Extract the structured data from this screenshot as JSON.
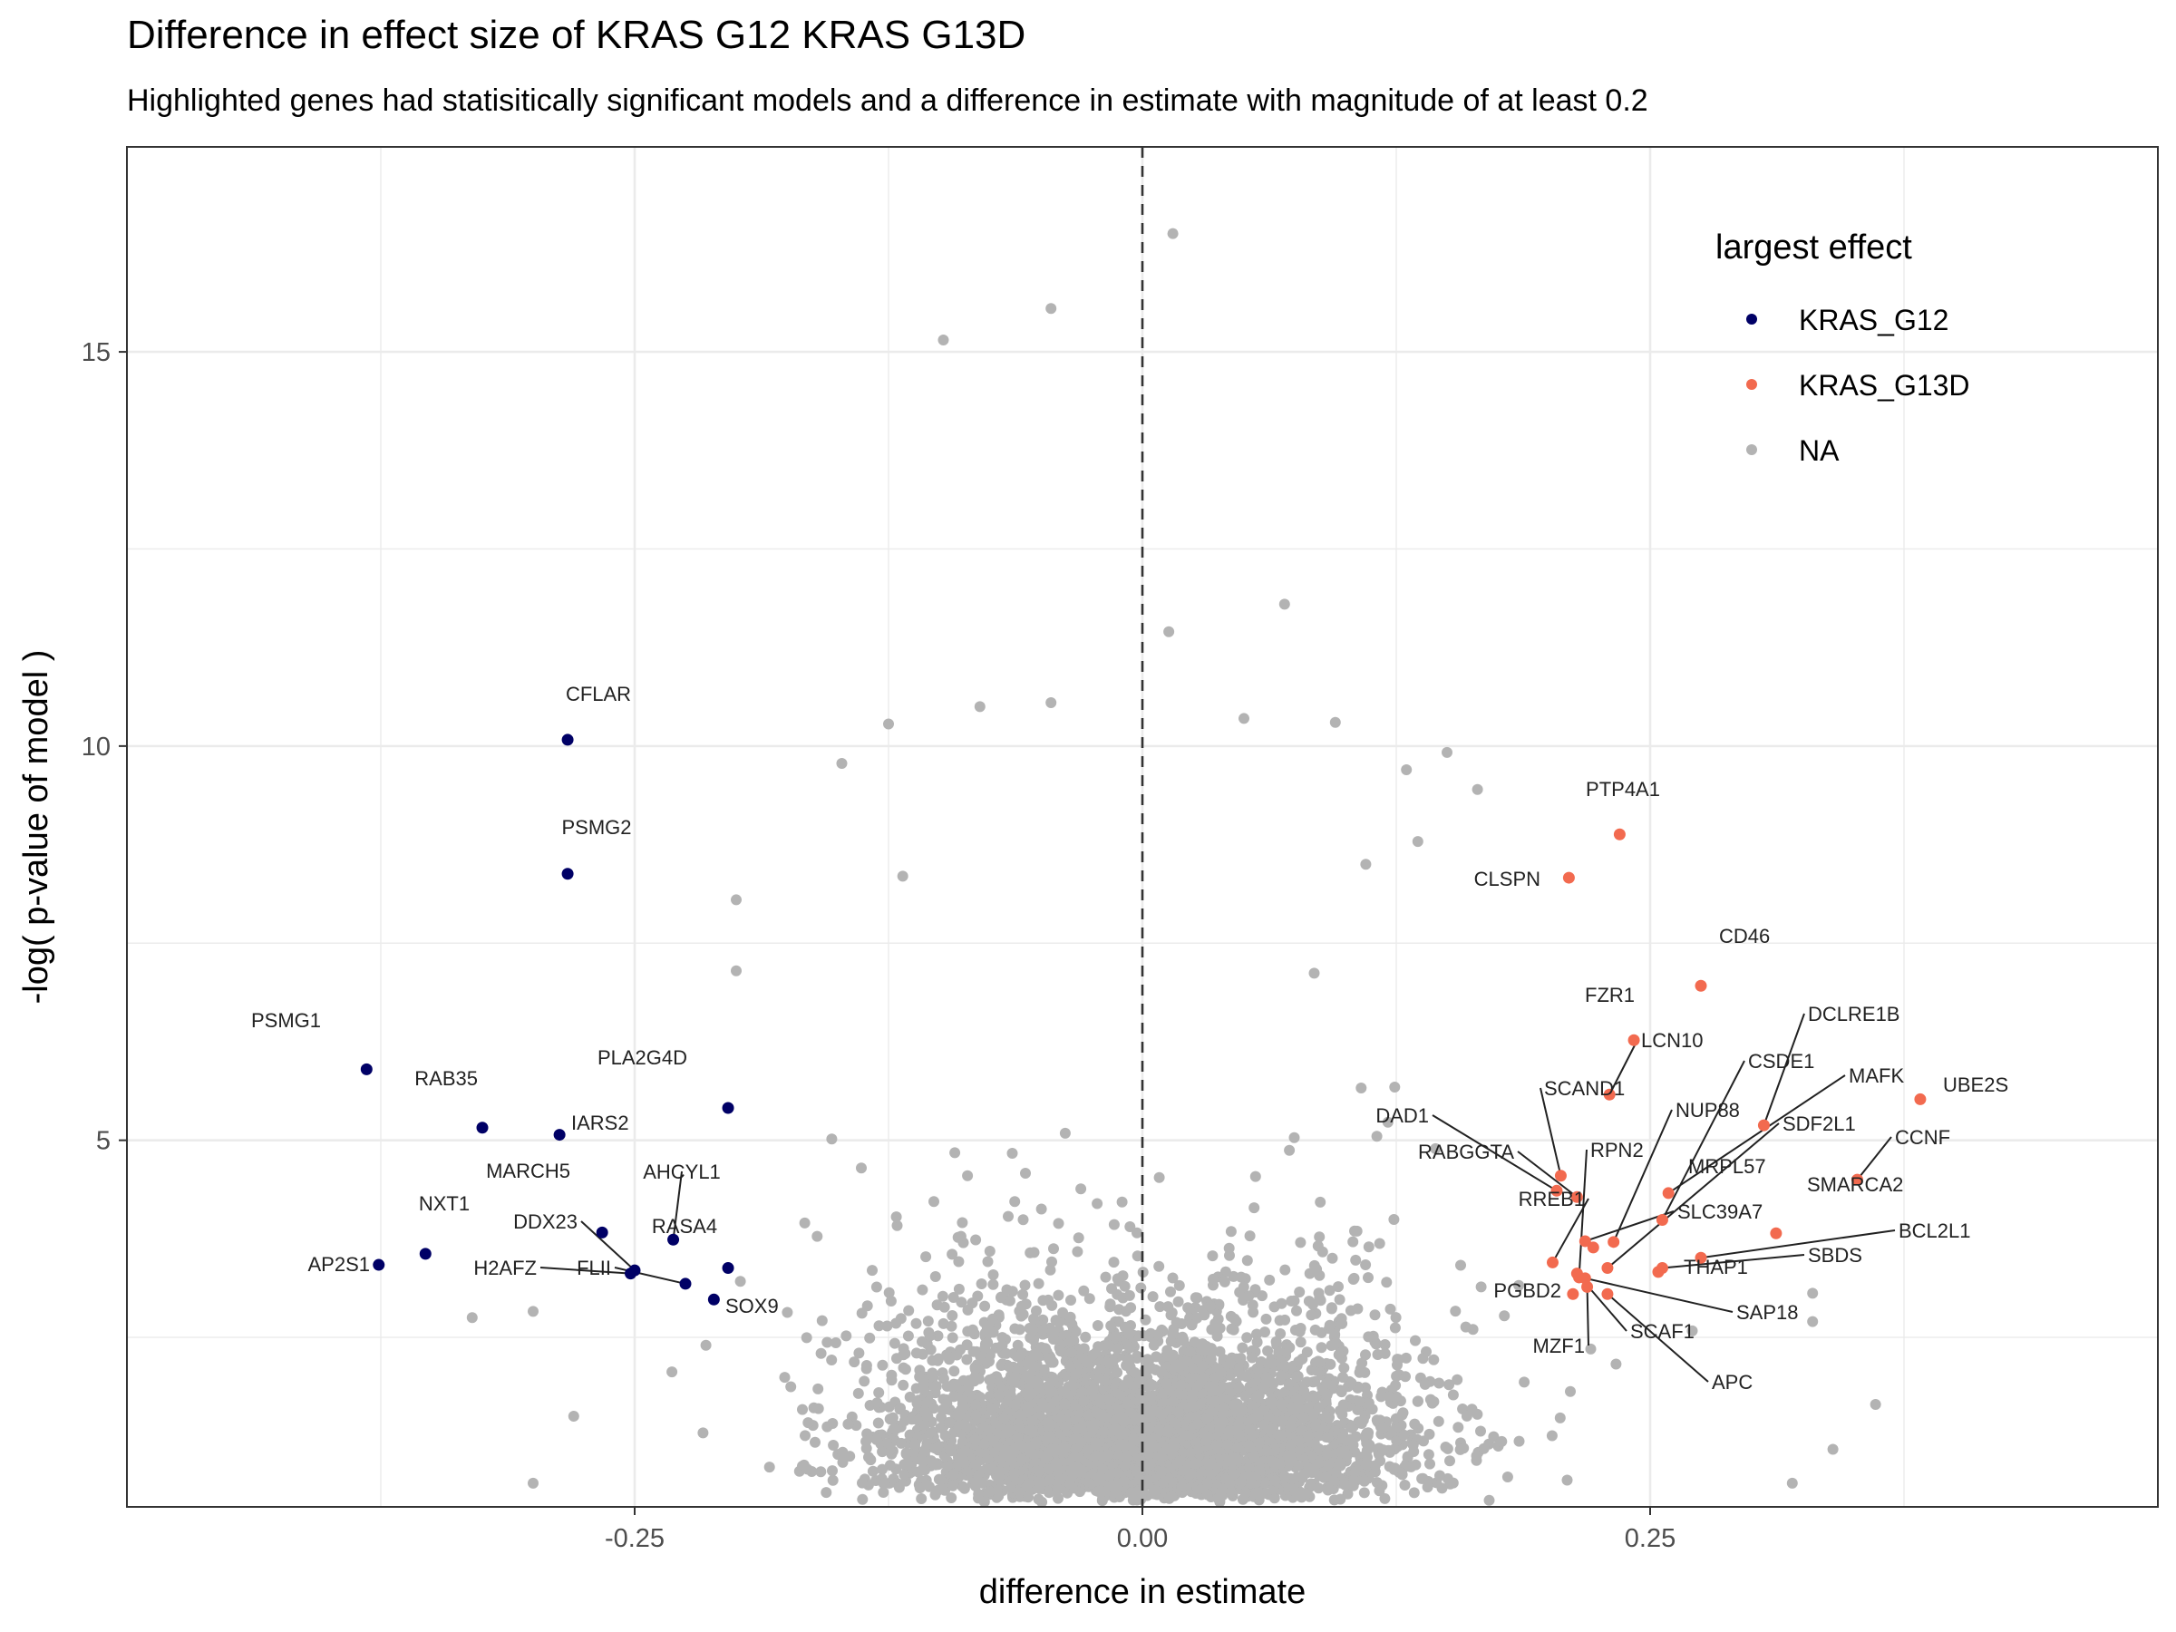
{
  "title": "Difference in effect size of KRAS G12 KRAS G13D",
  "subtitle": "Highlighted genes had statisitically significant models and a difference in estimate with magnitude of at least 0.2",
  "colors": {
    "KRAS_G12": "#000066",
    "KRAS_G13D": "#f26a4f",
    "NA": "#b3b3b3",
    "grid": "#ebebeb",
    "text": "#000000",
    "axis_text": "#4d4d4d"
  },
  "chart_data": {
    "type": "scatter",
    "xlabel": "difference in estimate",
    "ylabel": "-log( p-value of model )",
    "xlim": [
      -0.5,
      0.5
    ],
    "ylim": [
      0.35,
      17.6
    ],
    "x_ticks": [
      -0.25,
      0.0,
      0.25
    ],
    "x_tick_labels": [
      "-0.25",
      "0.00",
      "0.25"
    ],
    "y_ticks": [
      5,
      10,
      15
    ],
    "y_tick_labels": [
      "5",
      "10",
      "15"
    ],
    "grid": true,
    "reference_line": {
      "x": 0,
      "style": "dashed"
    },
    "legend": {
      "title": "largest effect",
      "position": "top-right",
      "entries": [
        "KRAS_G12",
        "KRAS_G13D",
        "NA"
      ]
    },
    "highlighted_points": [
      {
        "label": "CFLAR",
        "x": -0.283,
        "y": 10.08,
        "group": "KRAS_G12"
      },
      {
        "label": "PSMG2",
        "x": -0.283,
        "y": 8.38,
        "group": "KRAS_G12"
      },
      {
        "label": "PSMG1",
        "x": -0.382,
        "y": 5.9,
        "group": "KRAS_G12"
      },
      {
        "label": "RAB35",
        "x": -0.325,
        "y": 5.16,
        "group": "KRAS_G12"
      },
      {
        "label": "IARS2",
        "x": -0.287,
        "y": 5.07,
        "group": "KRAS_G12"
      },
      {
        "label": "PLA2G4D",
        "x": -0.204,
        "y": 5.41,
        "group": "KRAS_G12"
      },
      {
        "label": "MARCH5",
        "x": -0.266,
        "y": 3.83,
        "group": "KRAS_G12"
      },
      {
        "label": "AHCYL1",
        "x": -0.231,
        "y": 3.74,
        "group": "KRAS_G12"
      },
      {
        "label": "NXT1",
        "x": -0.353,
        "y": 3.56,
        "group": "KRAS_G12"
      },
      {
        "label": "AP2S1",
        "x": -0.376,
        "y": 3.42,
        "group": "KRAS_G12"
      },
      {
        "label": "DDX23",
        "x": -0.25,
        "y": 3.35,
        "group": "KRAS_G12"
      },
      {
        "label": "H2AFZ",
        "x": -0.252,
        "y": 3.31,
        "group": "KRAS_G12"
      },
      {
        "label": "RASA4",
        "x": -0.204,
        "y": 3.38,
        "group": "KRAS_G12"
      },
      {
        "label": "FLII",
        "x": -0.225,
        "y": 3.18,
        "group": "KRAS_G12"
      },
      {
        "label": "SOX9",
        "x": -0.211,
        "y": 2.98,
        "group": "KRAS_G12"
      },
      {
        "label": "PTP4A1",
        "x": 0.235,
        "y": 8.88,
        "group": "KRAS_G13D"
      },
      {
        "label": "CLSPN",
        "x": 0.21,
        "y": 8.33,
        "group": "KRAS_G13D"
      },
      {
        "label": "CD46",
        "x": 0.275,
        "y": 6.96,
        "group": "KRAS_G13D"
      },
      {
        "label": "FZR1",
        "x": 0.242,
        "y": 6.27,
        "group": "KRAS_G13D"
      },
      {
        "label": "LCN10",
        "x": 0.23,
        "y": 5.58,
        "group": "KRAS_G13D"
      },
      {
        "label": "DCLRE1B",
        "x": 0.306,
        "y": 5.19,
        "group": "KRAS_G13D"
      },
      {
        "label": "UBE2S",
        "x": 0.383,
        "y": 5.52,
        "group": "KRAS_G13D"
      },
      {
        "label": "CCNF",
        "x": 0.352,
        "y": 4.5,
        "group": "KRAS_G13D"
      },
      {
        "label": "SMARCA2",
        "x": 0.312,
        "y": 3.82,
        "group": "KRAS_G13D"
      },
      {
        "label": "BCL2L1",
        "x": 0.275,
        "y": 3.51,
        "group": "KRAS_G13D"
      },
      {
        "label": "SBDS",
        "x": 0.256,
        "y": 3.38,
        "group": "KRAS_G13D"
      },
      {
        "label": "THAP1",
        "x": 0.254,
        "y": 3.33,
        "group": "KRAS_G13D"
      },
      {
        "label": "CSDE1",
        "x": 0.256,
        "y": 3.99,
        "group": "KRAS_G13D"
      },
      {
        "label": "MAFK",
        "x": 0.259,
        "y": 4.33,
        "group": "KRAS_G13D"
      },
      {
        "label": "NUP88",
        "x": 0.232,
        "y": 3.71,
        "group": "KRAS_G13D"
      },
      {
        "label": "SDF2L1",
        "x": 0.229,
        "y": 3.38,
        "group": "KRAS_G13D"
      },
      {
        "label": "MRPL57",
        "x": 0.222,
        "y": 3.64,
        "group": "KRAS_G13D"
      },
      {
        "label": "SLC39A7",
        "x": 0.218,
        "y": 3.72,
        "group": "KRAS_G13D"
      },
      {
        "label": "RPN2",
        "x": 0.215,
        "y": 3.26,
        "group": "KRAS_G13D"
      },
      {
        "label": "SCAND1",
        "x": 0.206,
        "y": 4.55,
        "group": "KRAS_G13D"
      },
      {
        "label": "DAD1",
        "x": 0.204,
        "y": 4.36,
        "group": "KRAS_G13D"
      },
      {
        "label": "RABGGTA",
        "x": 0.214,
        "y": 4.28,
        "group": "KRAS_G13D"
      },
      {
        "label": "RREB1",
        "x": 0.202,
        "y": 3.45,
        "group": "KRAS_G13D"
      },
      {
        "label": "PGBD2",
        "x": 0.212,
        "y": 3.05,
        "group": "KRAS_G13D"
      },
      {
        "label": "MZF1",
        "x": 0.219,
        "y": 3.14,
        "group": "KRAS_G13D"
      },
      {
        "label": "SCAF1",
        "x": 0.214,
        "y": 3.31,
        "group": "KRAS_G13D"
      },
      {
        "label": "SAP18",
        "x": 0.218,
        "y": 3.25,
        "group": "KRAS_G13D"
      },
      {
        "label": "APC",
        "x": 0.229,
        "y": 3.05,
        "group": "KRAS_G13D"
      }
    ],
    "background_points": {
      "group": "NA",
      "approx_count": 4500,
      "note_points": [
        {
          "x": 0.015,
          "y": 16.5
        },
        {
          "x": -0.045,
          "y": 15.55
        },
        {
          "x": -0.098,
          "y": 15.15
        },
        {
          "x": 0.07,
          "y": 11.8
        },
        {
          "x": 0.013,
          "y": 11.45
        },
        {
          "x": -0.148,
          "y": 9.78
        },
        {
          "x": 0.05,
          "y": 10.35
        },
        {
          "x": -0.125,
          "y": 10.28
        },
        {
          "x": -0.08,
          "y": 10.5
        },
        {
          "x": -0.045,
          "y": 10.55
        },
        {
          "x": 0.095,
          "y": 10.3
        },
        {
          "x": 0.13,
          "y": 9.7
        },
        {
          "x": 0.11,
          "y": 8.5
        },
        {
          "x": -0.2,
          "y": 8.05
        },
        {
          "x": -0.2,
          "y": 7.15
        },
        {
          "x": 0.15,
          "y": 9.92
        },
        {
          "x": 0.165,
          "y": 9.45
        },
        {
          "x": -0.118,
          "y": 8.35
        },
        {
          "x": -0.3,
          "y": 2.83
        },
        {
          "x": -0.33,
          "y": 2.75
        },
        {
          "x": 0.33,
          "y": 2.7
        },
        {
          "x": 0.33,
          "y": 3.06
        },
        {
          "x": 0.361,
          "y": 1.65
        },
        {
          "x": 0.34,
          "y": 1.08
        },
        {
          "x": 0.32,
          "y": 0.65
        },
        {
          "x": -0.3,
          "y": 0.65
        },
        {
          "x": -0.28,
          "y": 1.5
        }
      ]
    }
  }
}
